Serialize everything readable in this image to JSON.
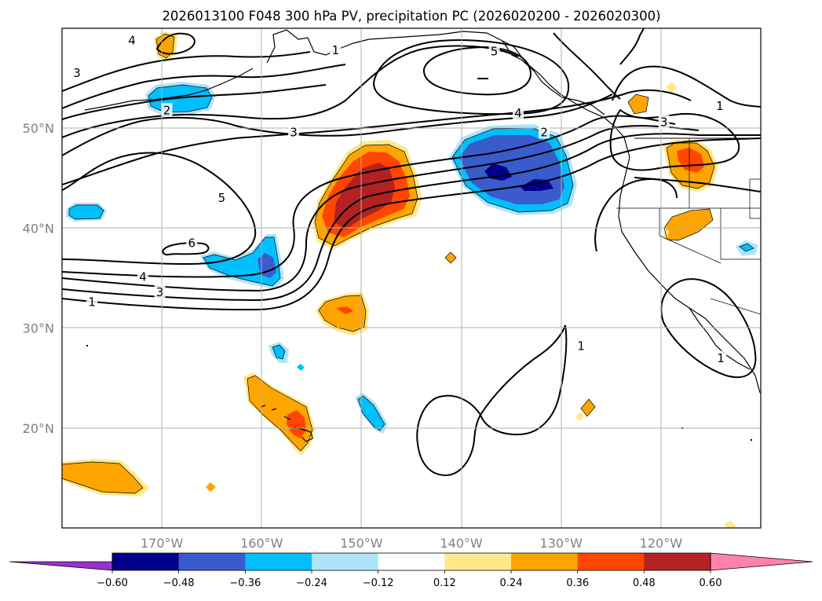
{
  "chart_data": {
    "type": "contour map",
    "title": "2026013100 F048 300 hPa PV, precipitation PC (2026020200 - 2026020300)",
    "map_extent": {
      "lon": [
        -180,
        -110
      ],
      "lat": [
        10,
        60
      ]
    },
    "x_ticks": [
      {
        "lon": -170,
        "label": "170°W"
      },
      {
        "lon": -160,
        "label": "160°W"
      },
      {
        "lon": -150,
        "label": "150°W"
      },
      {
        "lon": -140,
        "label": "140°W"
      },
      {
        "lon": -130,
        "label": "130°W"
      },
      {
        "lon": -120,
        "label": "120°W"
      }
    ],
    "y_ticks": [
      {
        "lat": 20,
        "label": "20°N"
      },
      {
        "lat": 30,
        "label": "30°N"
      },
      {
        "lat": 40,
        "label": "40°N"
      },
      {
        "lat": 50,
        "label": "50°N"
      }
    ],
    "grid": true,
    "pv_contour_levels": [
      1,
      2,
      3,
      4,
      5,
      6
    ],
    "pv_contour_labels": [
      {
        "text": "1",
        "lon": -177.0,
        "lat": 32.6
      },
      {
        "text": "3",
        "lon": -170.2,
        "lat": 33.6
      },
      {
        "text": "4",
        "lon": -171.9,
        "lat": 35.1
      },
      {
        "text": "6",
        "lon": -167.0,
        "lat": 38.5
      },
      {
        "text": "5",
        "lon": -164.0,
        "lat": 43.0
      },
      {
        "text": "3",
        "lon": -178.5,
        "lat": 55.5
      },
      {
        "text": "2",
        "lon": -169.5,
        "lat": 51.8
      },
      {
        "text": "4",
        "lon": -173.0,
        "lat": 58.8
      },
      {
        "text": "3",
        "lon": -156.8,
        "lat": 49.6
      },
      {
        "text": "1",
        "lon": -152.6,
        "lat": 57.8
      },
      {
        "text": "5",
        "lon": -136.7,
        "lat": 57.7
      },
      {
        "text": "4",
        "lon": -134.3,
        "lat": 51.5
      },
      {
        "text": "2",
        "lon": -131.7,
        "lat": 49.6
      },
      {
        "text": "1",
        "lon": -114.1,
        "lat": 52.2
      },
      {
        "text": "3",
        "lon": -119.7,
        "lat": 50.6
      },
      {
        "text": "1",
        "lon": -128.0,
        "lat": 28.2
      },
      {
        "text": "1",
        "lon": -114.0,
        "lat": 27.0
      }
    ],
    "colorbar": {
      "levels": [
        -0.6,
        -0.48,
        -0.36,
        -0.24,
        -0.12,
        0.12,
        0.24,
        0.36,
        0.48,
        0.6
      ],
      "tick_labels": [
        "−0.60",
        "−0.48",
        "−0.36",
        "−0.24",
        "−0.12",
        "0.12",
        "0.24",
        "0.36",
        "0.48",
        "0.60"
      ],
      "colors": [
        "#9932cc",
        "#00008b",
        "#3a5bcc",
        "#00bfff",
        "#aee4f7",
        "#ffffff",
        "#ffe98a",
        "#ffa500",
        "#ff4500",
        "#b22222",
        "#ff82ab"
      ],
      "extend": "both"
    },
    "precip_pc_regions": [
      {
        "name": "central-pacific positive maximum",
        "center": [
          -149.5,
          44.0
        ],
        "peak_class": "0.48 to 0.60",
        "sign": "positive"
      },
      {
        "name": "northeast pacific negative minimum",
        "center": [
          -133.0,
          45.5
        ],
        "peak_class": "below -0.48",
        "sign": "negative"
      },
      {
        "name": "hawaii positive",
        "center": [
          -156.5,
          21.0
        ],
        "peak_class": "0.36 to 0.48",
        "sign": "positive"
      },
      {
        "name": "subtropical positive",
        "center": [
          -150.0,
          32.0
        ],
        "peak_class": "0.36 to 0.48",
        "sign": "positive"
      },
      {
        "name": "southwest positive",
        "center": [
          -176.0,
          15.0
        ],
        "peak_class": "0.24 to 0.36",
        "sign": "positive"
      },
      {
        "name": "north of date line negative",
        "center": [
          -169.5,
          52.5
        ],
        "peak_class": "-0.36 to -0.24",
        "sign": "negative"
      },
      {
        "name": "west of 160W negative",
        "center": [
          -160.0,
          37.0
        ],
        "peak_class": "-0.48 to -0.36",
        "sign": "negative"
      },
      {
        "name": "pacific northwest positive",
        "center": [
          -117.5,
          47.0
        ],
        "peak_class": "0.36 to 0.48",
        "sign": "positive"
      }
    ]
  }
}
